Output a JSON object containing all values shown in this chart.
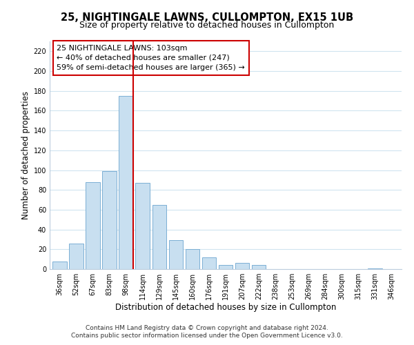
{
  "title": "25, NIGHTINGALE LAWNS, CULLOMPTON, EX15 1UB",
  "subtitle": "Size of property relative to detached houses in Cullompton",
  "xlabel": "Distribution of detached houses by size in Cullompton",
  "ylabel": "Number of detached properties",
  "bar_labels": [
    "36sqm",
    "52sqm",
    "67sqm",
    "83sqm",
    "98sqm",
    "114sqm",
    "129sqm",
    "145sqm",
    "160sqm",
    "176sqm",
    "191sqm",
    "207sqm",
    "222sqm",
    "238sqm",
    "253sqm",
    "269sqm",
    "284sqm",
    "300sqm",
    "315sqm",
    "331sqm",
    "346sqm"
  ],
  "bar_values": [
    8,
    26,
    88,
    99,
    175,
    87,
    65,
    29,
    20,
    12,
    4,
    6,
    4,
    0,
    0,
    0,
    0,
    0,
    0,
    1,
    0
  ],
  "bar_color": "#c8dff0",
  "bar_edge_color": "#7bafd4",
  "vline_index": 4,
  "vline_color": "#cc0000",
  "ylim": [
    0,
    230
  ],
  "yticks": [
    0,
    20,
    40,
    60,
    80,
    100,
    120,
    140,
    160,
    180,
    200,
    220
  ],
  "annotation_title": "25 NIGHTINGALE LAWNS: 103sqm",
  "annotation_line1": "← 40% of detached houses are smaller (247)",
  "annotation_line2": "59% of semi-detached houses are larger (365) →",
  "footnote1": "Contains HM Land Registry data © Crown copyright and database right 2024.",
  "footnote2": "Contains public sector information licensed under the Open Government Licence v3.0.",
  "background_color": "#ffffff",
  "grid_color": "#d0e4f0",
  "title_fontsize": 10.5,
  "subtitle_fontsize": 9,
  "xlabel_fontsize": 8.5,
  "ylabel_fontsize": 8.5,
  "tick_fontsize": 7,
  "footnote_fontsize": 6.5,
  "annotation_fontsize": 8
}
